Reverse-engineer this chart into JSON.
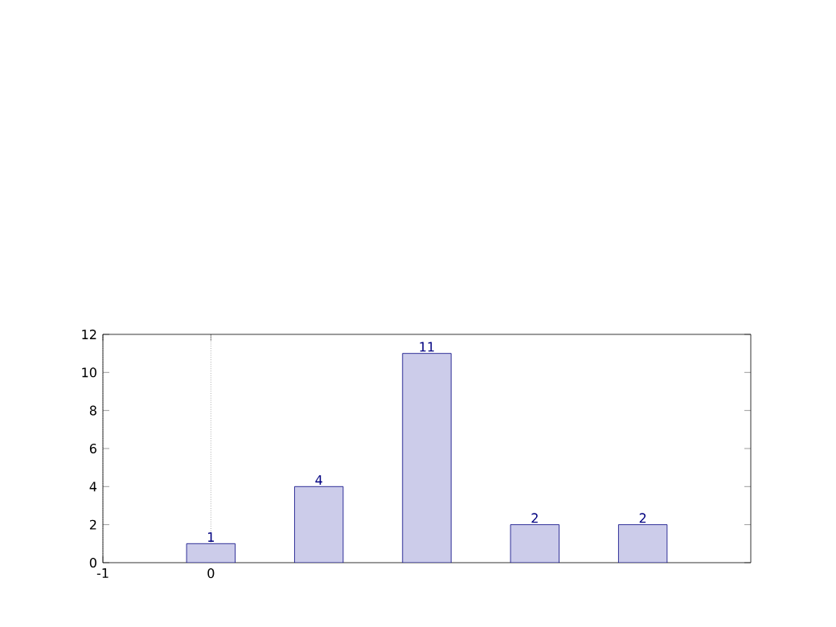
{
  "chart_data": {
    "type": "bar",
    "x": [
      0,
      1,
      2,
      3,
      4
    ],
    "values": [
      1,
      4,
      11,
      2,
      2
    ],
    "color": "#ccccea",
    "xlim": [
      -1,
      5
    ],
    "ylim": [
      0,
      12
    ],
    "xticks": [
      -1,
      0
    ],
    "yticks": [
      0,
      2,
      4,
      6,
      8,
      10,
      12
    ],
    "grid": "x",
    "data_labels": true
  }
}
